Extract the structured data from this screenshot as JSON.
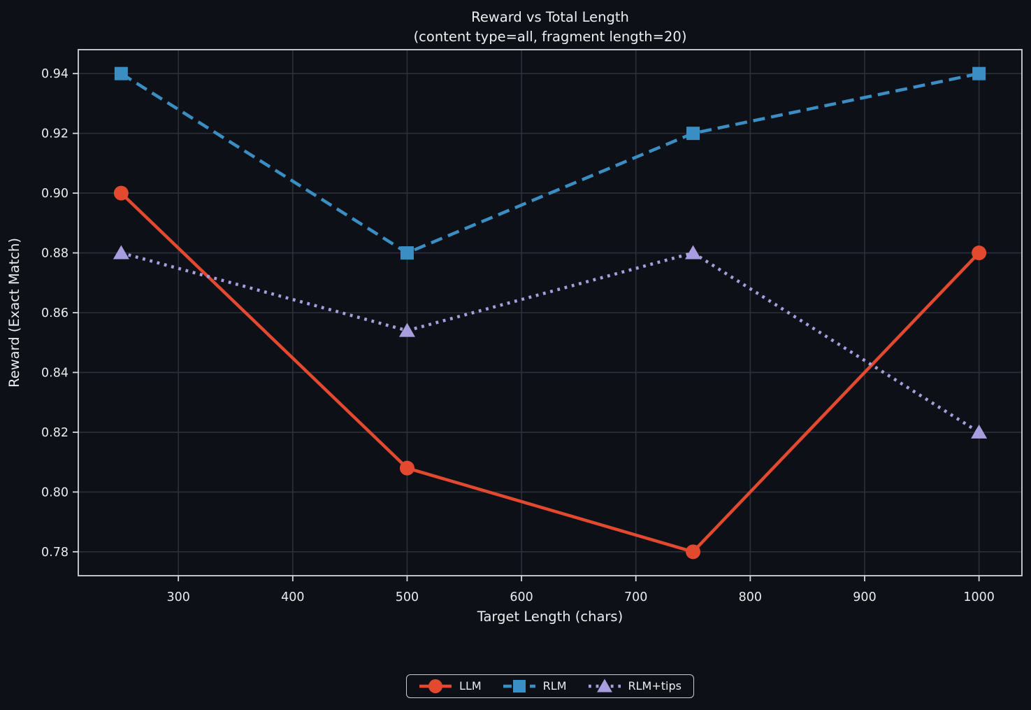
{
  "figure": {
    "title": "Reward vs Total Length",
    "subtitle": "(content type=all, fragment length=20)"
  },
  "chart_data": {
    "type": "line",
    "title": "Reward vs Total Length (content type=all, fragment length=20)",
    "xlabel": "Target Length (chars)",
    "ylabel": "Reward (Exact Match)",
    "x": [
      250,
      500,
      750,
      1000
    ],
    "series": [
      {
        "name": "LLM",
        "values": [
          0.9,
          0.808,
          0.78,
          0.88
        ],
        "color": "#e2492f",
        "line_style": "solid",
        "marker": "circle"
      },
      {
        "name": "RLM",
        "values": [
          0.94,
          0.88,
          0.92,
          0.94
        ],
        "color": "#3a8ec4",
        "line_style": "dashed",
        "marker": "square"
      },
      {
        "name": "RLM+tips",
        "values": [
          0.88,
          0.854,
          0.88,
          0.82
        ],
        "color": "#a79ddf",
        "line_style": "dotted",
        "marker": "triangle"
      }
    ],
    "xlim": [
      212.5,
      1037.5
    ],
    "ylim": [
      0.772,
      0.948
    ],
    "x_ticks": [
      300,
      400,
      500,
      600,
      700,
      800,
      900,
      1000
    ],
    "x_tick_labels": [
      "300",
      "400",
      "500",
      "600",
      "700",
      "800",
      "900",
      "1000"
    ],
    "y_ticks": [
      0.78,
      0.8,
      0.82,
      0.84,
      0.86,
      0.88,
      0.9,
      0.92,
      0.94
    ],
    "y_tick_labels": [
      "0.78",
      "0.80",
      "0.82",
      "0.84",
      "0.86",
      "0.88",
      "0.90",
      "0.92",
      "0.94"
    ],
    "grid": true,
    "legend": {
      "position": "bottom-center-outside",
      "labels": [
        "LLM",
        "RLM",
        "RLM+tips"
      ]
    }
  },
  "theme": {
    "background": "#0d1117",
    "grid_color": "#2b303a",
    "spine_color": "#d3d6db",
    "text_color": "#e9ebee",
    "legend_border_color": "#c9ccd3"
  }
}
